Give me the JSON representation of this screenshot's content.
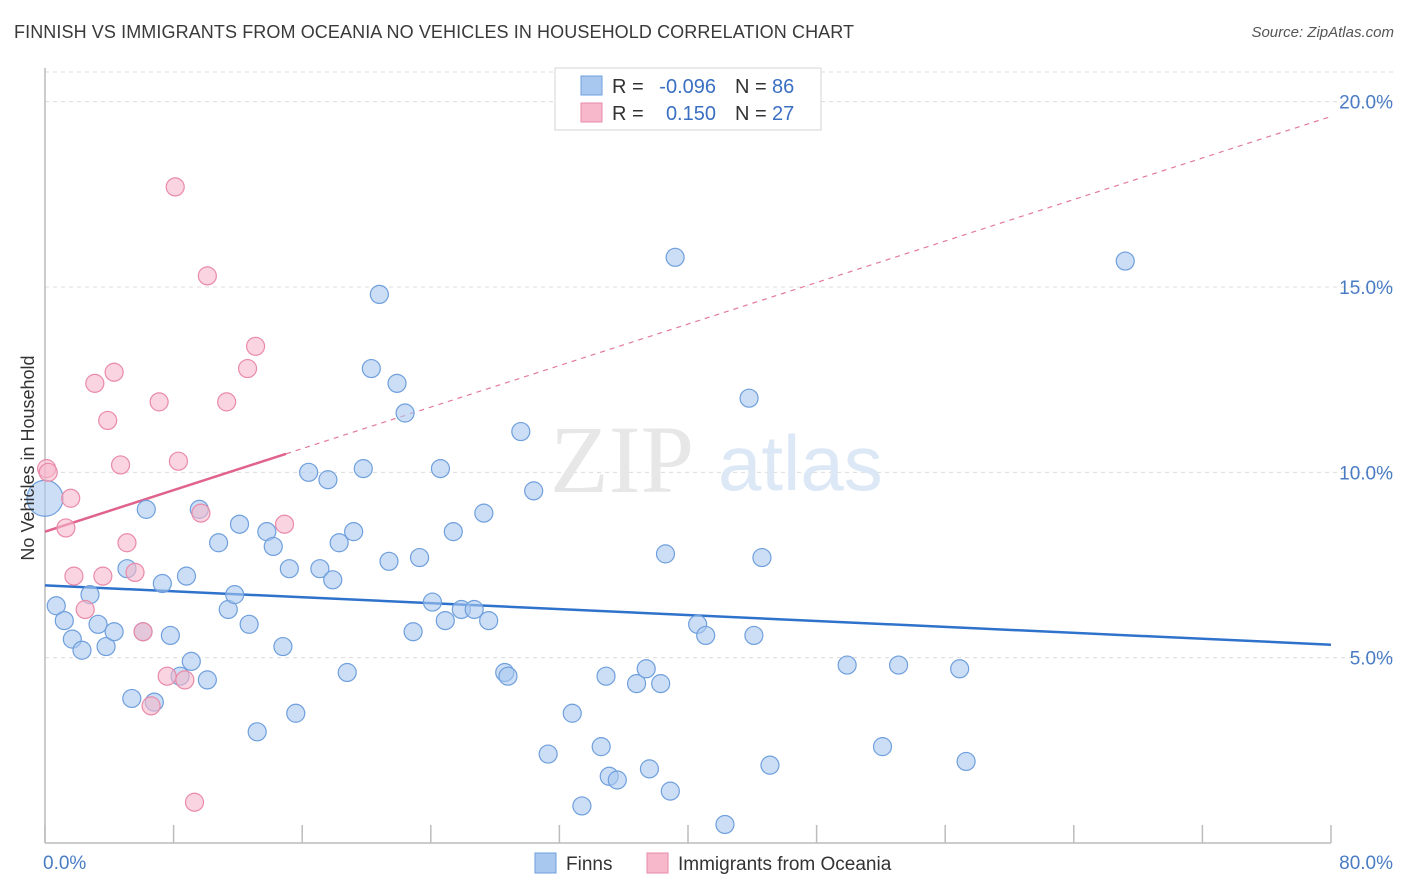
{
  "title": "FINNISH VS IMMIGRANTS FROM OCEANIA NO VEHICLES IN HOUSEHOLD CORRELATION CHART",
  "source": "Source: ZipAtlas.com",
  "watermark": {
    "zip": "ZIP",
    "atlas": "atlas"
  },
  "chart_data": {
    "type": "scatter",
    "xlabel": "",
    "ylabel": "No Vehicles in Household",
    "xlim": [
      0,
      80
    ],
    "ylim": [
      0,
      20.8
    ],
    "x_tick_labels": [
      "0.0%",
      "80.0%"
    ],
    "y_ticks": [
      {
        "value": 5,
        "label": "5.0%"
      },
      {
        "value": 10,
        "label": "10.0%"
      },
      {
        "value": 15,
        "label": "15.0%"
      },
      {
        "value": 20,
        "label": "20.0%"
      }
    ],
    "grid": true,
    "legend": {
      "placement": "top-center",
      "entries": [
        {
          "r_label": "R =",
          "r": "-0.096",
          "n_label": "N =",
          "n": "86",
          "color": "#a9c8f0"
        },
        {
          "r_label": "R =",
          "r": "0.150",
          "n_label": "N =",
          "n": "27",
          "color": "#f7b8cb"
        }
      ]
    },
    "series": [
      {
        "name": "Finns",
        "color": "#a9c8f0",
        "stroke": "#6f9fdc",
        "trend": {
          "x0": 0,
          "y0": 6.95,
          "x1": 80,
          "y1": 5.35,
          "color": "#2f72cc"
        },
        "points": [
          [
            0.0,
            9.3
          ],
          [
            0.7,
            6.4
          ],
          [
            1.2,
            6.0
          ],
          [
            1.7,
            5.5
          ],
          [
            2.3,
            5.2
          ],
          [
            2.8,
            6.7
          ],
          [
            3.3,
            5.9
          ],
          [
            3.8,
            5.3
          ],
          [
            4.3,
            5.7
          ],
          [
            5.1,
            7.4
          ],
          [
            5.4,
            3.9
          ],
          [
            6.1,
            5.7
          ],
          [
            6.3,
            9.0
          ],
          [
            6.8,
            3.8
          ],
          [
            7.3,
            7.0
          ],
          [
            7.8,
            5.6
          ],
          [
            8.4,
            4.5
          ],
          [
            8.8,
            7.2
          ],
          [
            9.1,
            4.9
          ],
          [
            9.6,
            9.0
          ],
          [
            10.1,
            4.4
          ],
          [
            10.8,
            8.1
          ],
          [
            11.4,
            6.3
          ],
          [
            11.8,
            6.7
          ],
          [
            12.1,
            8.6
          ],
          [
            12.7,
            5.9
          ],
          [
            13.2,
            3.0
          ],
          [
            13.8,
            8.4
          ],
          [
            14.2,
            8.0
          ],
          [
            14.8,
            5.3
          ],
          [
            15.2,
            7.4
          ],
          [
            15.6,
            3.5
          ],
          [
            16.4,
            10.0
          ],
          [
            17.1,
            7.4
          ],
          [
            17.6,
            9.8
          ],
          [
            17.9,
            7.1
          ],
          [
            18.3,
            8.1
          ],
          [
            18.8,
            4.6
          ],
          [
            19.2,
            8.4
          ],
          [
            19.8,
            10.1
          ],
          [
            20.3,
            12.8
          ],
          [
            20.8,
            14.8
          ],
          [
            21.4,
            7.6
          ],
          [
            21.9,
            12.4
          ],
          [
            22.4,
            11.6
          ],
          [
            22.9,
            5.7
          ],
          [
            23.3,
            7.7
          ],
          [
            24.1,
            6.5
          ],
          [
            24.6,
            10.1
          ],
          [
            24.9,
            6.0
          ],
          [
            25.4,
            8.4
          ],
          [
            25.9,
            6.3
          ],
          [
            26.7,
            6.3
          ],
          [
            27.3,
            8.9
          ],
          [
            27.6,
            6.0
          ],
          [
            28.6,
            4.6
          ],
          [
            28.8,
            4.5
          ],
          [
            29.6,
            11.1
          ],
          [
            30.4,
            9.5
          ],
          [
            31.3,
            2.4
          ],
          [
            32.8,
            3.5
          ],
          [
            33.4,
            1.0
          ],
          [
            34.6,
            2.6
          ],
          [
            34.9,
            4.5
          ],
          [
            35.1,
            1.8
          ],
          [
            35.6,
            1.7
          ],
          [
            36.8,
            4.3
          ],
          [
            37.4,
            4.7
          ],
          [
            37.6,
            2.0
          ],
          [
            38.3,
            4.3
          ],
          [
            38.6,
            7.8
          ],
          [
            38.9,
            1.4
          ],
          [
            39.2,
            15.8
          ],
          [
            40.6,
            5.9
          ],
          [
            41.1,
            5.6
          ],
          [
            42.3,
            0.5
          ],
          [
            43.8,
            12.0
          ],
          [
            44.1,
            5.6
          ],
          [
            44.6,
            7.7
          ],
          [
            45.1,
            2.1
          ],
          [
            49.9,
            4.8
          ],
          [
            52.1,
            2.6
          ],
          [
            53.1,
            4.8
          ],
          [
            56.9,
            4.7
          ],
          [
            57.3,
            2.2
          ],
          [
            67.2,
            15.7
          ]
        ]
      },
      {
        "name": "Immigrants from Oceania",
        "color": "#f7b8cb",
        "stroke": "#e98aa8",
        "trend": {
          "x0": 0,
          "y0": 8.4,
          "x1": 15.0,
          "y1": 10.5,
          "color": "#e0638c",
          "dashed_to": {
            "x": 80,
            "y": 19.6
          }
        },
        "points": [
          [
            0.1,
            10.1
          ],
          [
            0.2,
            10.0
          ],
          [
            1.3,
            8.5
          ],
          [
            1.6,
            9.3
          ],
          [
            1.8,
            7.2
          ],
          [
            2.5,
            6.3
          ],
          [
            3.1,
            12.4
          ],
          [
            3.6,
            7.2
          ],
          [
            3.9,
            11.4
          ],
          [
            4.3,
            12.7
          ],
          [
            4.7,
            10.2
          ],
          [
            5.1,
            8.1
          ],
          [
            5.6,
            7.3
          ],
          [
            6.1,
            5.7
          ],
          [
            6.6,
            3.7
          ],
          [
            7.1,
            11.9
          ],
          [
            7.6,
            4.5
          ],
          [
            8.1,
            17.7
          ],
          [
            8.3,
            10.3
          ],
          [
            8.7,
            4.4
          ],
          [
            9.3,
            1.1
          ],
          [
            9.7,
            8.9
          ],
          [
            10.1,
            15.3
          ],
          [
            11.3,
            11.9
          ],
          [
            12.6,
            12.8
          ],
          [
            13.1,
            13.4
          ],
          [
            14.9,
            8.6
          ]
        ]
      }
    ]
  }
}
